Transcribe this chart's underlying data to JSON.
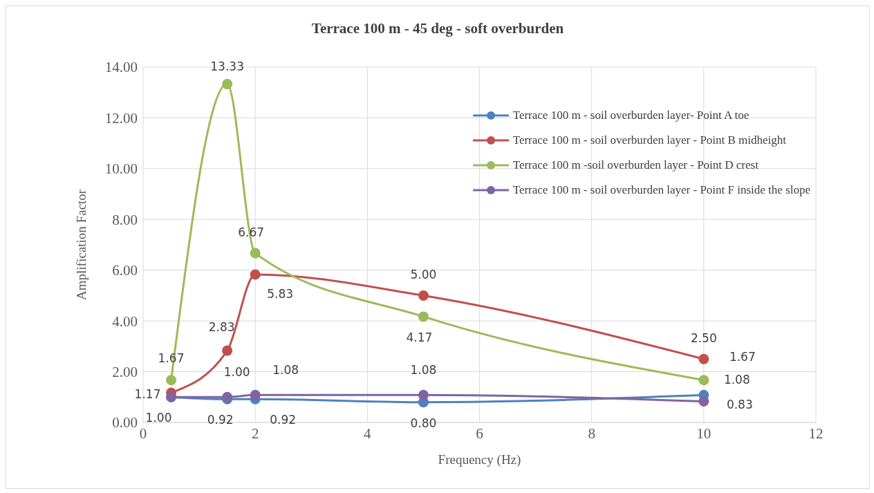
{
  "chart_data": {
    "type": "line",
    "title": "Terrace 100 m - 45 deg - soft overburden",
    "xlabel": "Frequency (Hz)",
    "ylabel": "Amplification Factor",
    "x": [
      0.5,
      1.5,
      2,
      5,
      10
    ],
    "series": [
      {
        "name": "Terrace 100 m - soil overburden layer- Point A toe",
        "color": "#4f81bd",
        "values": [
          1.0,
          0.92,
          0.92,
          0.8,
          1.08
        ],
        "value_labels": [
          "1.00",
          "0.92",
          "0.92",
          "0.80",
          "1.08"
        ]
      },
      {
        "name": "Terrace 100 m - soil overburden layer - Point B midheight",
        "color": "#c0504d",
        "values": [
          1.17,
          2.83,
          5.83,
          5.0,
          2.5
        ],
        "value_labels": [
          "1.17",
          "2.83",
          "5.83",
          "5.00",
          "2.50"
        ]
      },
      {
        "name": "Terrace 100 m -soil overburden layer - Point D crest",
        "color": "#9bbb59",
        "values": [
          1.67,
          13.33,
          6.67,
          4.17,
          1.67
        ],
        "value_labels": [
          "1.67",
          "13.33",
          "6.67",
          "4.17",
          "1.67"
        ]
      },
      {
        "name": "Terrace 100 m - soil overburden layer - Point F inside the slope",
        "color": "#8064a2",
        "values": [
          1.0,
          1.0,
          1.08,
          1.08,
          0.83
        ],
        "value_labels": [
          null,
          "1.00",
          "1.08",
          "1.08",
          "0.83"
        ]
      }
    ],
    "xlim": [
      0,
      12
    ],
    "xticks": [
      0,
      2,
      4,
      6,
      8,
      10,
      12
    ],
    "ylim": [
      0,
      14
    ],
    "yticks": [
      {
        "value": 0,
        "label": "0.00"
      },
      {
        "value": 2,
        "label": "2.00"
      },
      {
        "value": 4,
        "label": "4.00"
      },
      {
        "value": 6,
        "label": "6.00"
      },
      {
        "value": 8,
        "label": "8.00"
      },
      {
        "value": 10,
        "label": "10.00"
      },
      {
        "value": 12,
        "label": "12.00"
      },
      {
        "value": 14,
        "label": "14.00"
      }
    ],
    "grid": true,
    "legend": "top right",
    "marker": "circle",
    "line_style": "solid"
  }
}
